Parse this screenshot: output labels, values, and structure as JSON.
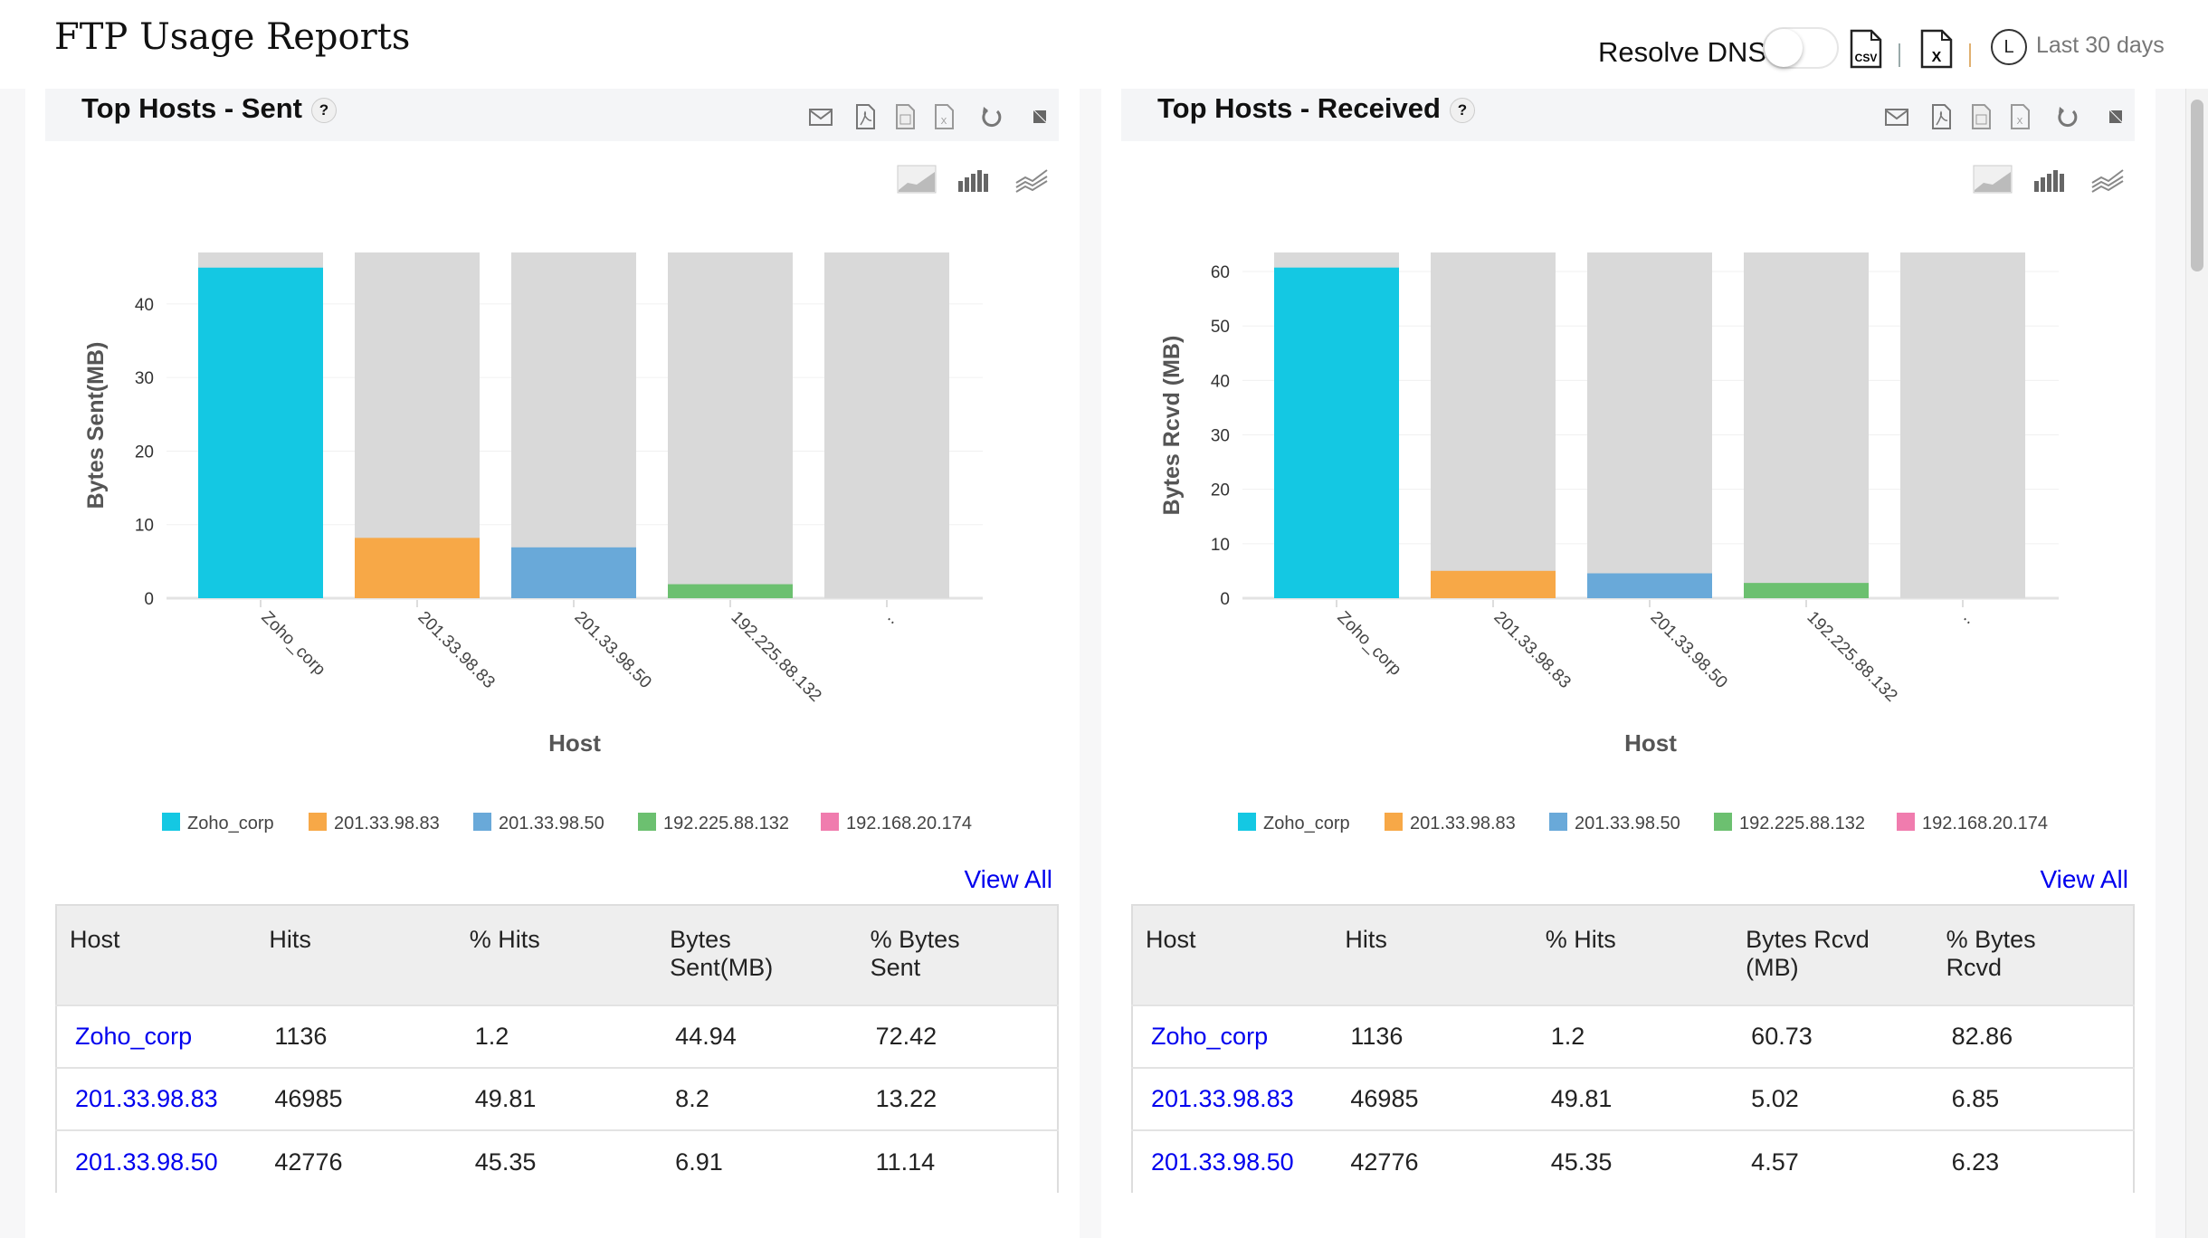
{
  "header": {
    "title": "FTP Usage Reports",
    "resolve_dns_label": "Resolve DNS",
    "resolve_dns_on": false,
    "export_icons": [
      "csv-icon",
      "excel-icon"
    ],
    "clock_glyph": "L",
    "time_range": "Last 30 days"
  },
  "colors": {
    "series": [
      "#14c8e3",
      "#f7a847",
      "#69a9d9",
      "#6cc070",
      "#f07cae"
    ],
    "remainder": "#d9d9d9",
    "link": "#0000ee"
  },
  "panels": [
    {
      "title": "Top Hosts - Sent",
      "help": "?",
      "header_icons": [
        "mail-icon",
        "pdf-icon",
        "csv-icon",
        "excel-icon",
        "refresh-icon",
        "expand-icon"
      ],
      "chart_type_icons": [
        "area-chart-icon",
        "bar-chart-icon",
        "line-chart-icon"
      ],
      "view_all": "View All",
      "columns": [
        "Host",
        "Hits",
        "% Hits",
        "Bytes Sent(MB)",
        "% Bytes Sent"
      ],
      "rows": [
        [
          "Zoho_corp",
          "1136",
          "1.2",
          "44.94",
          "72.42"
        ],
        [
          "201.33.98.83",
          "46985",
          "49.81",
          "8.2",
          "13.22"
        ],
        [
          "201.33.98.50",
          "42776",
          "45.35",
          "6.91",
          "11.14"
        ]
      ]
    },
    {
      "title": "Top Hosts - Received",
      "help": "?",
      "header_icons": [
        "mail-icon",
        "pdf-icon",
        "csv-icon",
        "excel-icon",
        "refresh-icon",
        "expand-icon"
      ],
      "chart_type_icons": [
        "area-chart-icon",
        "bar-chart-icon",
        "line-chart-icon"
      ],
      "view_all": "View All",
      "columns": [
        "Host",
        "Hits",
        "% Hits",
        "Bytes Rcvd (MB)",
        "% Bytes Rcvd"
      ],
      "rows": [
        [
          "Zoho_corp",
          "1136",
          "1.2",
          "60.73",
          "82.86"
        ],
        [
          "201.33.98.83",
          "46985",
          "49.81",
          "5.02",
          "6.85"
        ],
        [
          "201.33.98.50",
          "42776",
          "45.35",
          "4.57",
          "6.23"
        ]
      ]
    }
  ],
  "chart_data": [
    {
      "type": "bar",
      "xlabel": "Host",
      "ylabel": "Bytes Sent(MB)",
      "categories": [
        "Zoho_corp",
        "201.33.98.83",
        "201.33.98.50",
        "192.225.88.132",
        ".."
      ],
      "values": [
        44.94,
        8.2,
        6.91,
        1.9,
        0
      ],
      "ylim": [
        0,
        47
      ],
      "yticks": [
        0,
        10,
        20,
        30,
        40
      ],
      "grid": true,
      "legend": [
        "Zoho_corp",
        "201.33.98.83",
        "201.33.98.50",
        "192.225.88.132",
        "192.168.20.174"
      ],
      "legend_position": "bottom"
    },
    {
      "type": "bar",
      "xlabel": "Host",
      "ylabel": "Bytes Rcvd (MB)",
      "categories": [
        "Zoho_corp",
        "201.33.98.83",
        "201.33.98.50",
        "192.225.88.132",
        ".."
      ],
      "values": [
        60.73,
        5.02,
        4.57,
        2.8,
        0
      ],
      "ylim": [
        0,
        63.5
      ],
      "yticks": [
        0,
        10,
        20,
        30,
        40,
        50,
        60
      ],
      "grid": true,
      "legend": [
        "Zoho_corp",
        "201.33.98.83",
        "201.33.98.50",
        "192.225.88.132",
        "192.168.20.174"
      ],
      "legend_position": "bottom"
    }
  ]
}
